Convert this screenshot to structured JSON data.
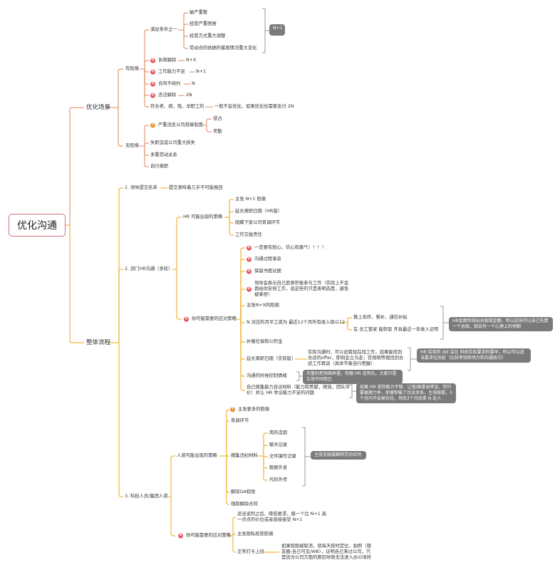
{
  "root": "优化沟通",
  "colors": {
    "scene_branch": "#e39a78",
    "process_branch": "#f2b53c",
    "note_badge": "#7b7b7b",
    "icon_red": "#e0505a",
    "icon_orange": "#f0953a",
    "root_border": "#d9707e"
  },
  "scene": {
    "label": "优化场景",
    "compensated": {
      "label": "有赔偿",
      "condition": {
        "label": "满足条件之一",
        "items": [
          "破产重整",
          "经营严重困难",
          "经营方式重大调整",
          "劳动合同依据的客观情况重大变化"
        ],
        "note": "N+1"
      },
      "items": [
        {
          "label": "协商解除",
          "value": "N+X",
          "icon": "red-flower-icon"
        },
        {
          "label": "工作能力不足",
          "value": "N+1",
          "icon": "red-flower-icon"
        },
        {
          "label": "合同不续约",
          "value": "N",
          "icon": "red-flower-icon"
        },
        {
          "label": "违法解除",
          "value": "2N",
          "icon": "red-flower-icon"
        }
      ],
      "special": {
        "label": "符合老、病、残、孕职工的",
        "value": "一般不会优化，如果优化也需要支付 2N"
      }
    },
    "uncompensated": {
      "label": "无赔偿",
      "violation": {
        "label": "严重违反公司规章制度",
        "icon": "orange-alert-icon",
        "items": [
          "侵占",
          "考勤"
        ]
      },
      "items": [
        "失职造成公司重大损失",
        "多重劳动关系",
        "自行离职"
      ]
    }
  },
  "process": {
    "label": "整体流程",
    "step1": {
      "label": "1. 领导提交名单",
      "value": "提交意味着几乎不可能挽回"
    },
    "step2": {
      "label": "2. 部门HR沟通（多轮）",
      "hr_strategy": {
        "label": "HR 可能出现的策略",
        "items": [
          "主张 N+1 赔偿",
          "延长离职日期（HR版）",
          "隐瞒下家公司背调环节",
          "工作交接责任"
        ]
      },
      "response": {
        "label": "你可能需要的应对策略",
        "items": [
          "一定要有耐心、信心和勇气！！！！",
          "沟通过程录音",
          "保留书面证据",
          "领导会表示自己愿意积极参与工作（实际上不会再给你安排工作，说这些的只是表明态度，避免被拿捏）",
          "主张N+X的赔偿",
          "N 对应的月平工资为 最近12个月所有收入除以12",
          "补缴社保和公积金",
          "延长离职日期（实际版）",
          "沟通的时候控制情绪",
          "自己搜集能力自证材料（能力和贡献，绩效，团队评价）并让 HR 举证能力不足的问题"
        ],
        "salary_items": [
          "算上年终、餐补、通信补贴",
          "在 员工管家 能获取 开具最近一年收入证明"
        ],
        "salary_note": "HR会面你测出总赔偿金额，所以这块可以自己先算一个总账，就会有一个心理上的预期",
        "extend_detail": "实际沟通时，可以说我现在找工作，如果能找到合适的offer，即刻会立马走；否则稍等我找到合适工作再说（具体节奏自行把握）",
        "extend_note": "HR 给到的 ddl 会比 科技实际要求的要早，所以可以适当要求往后延（比较考验职场力和沟通技巧）",
        "emotion_note": "尽量别把场面弄僵，你跟 HR 没有仇，大家只是立场不同而已",
        "evidence_note": "如果 HR 说你能力不够，让他/她拿出举证，你只要据理力争，即便你输了也没关系，主张赔偿，3个月内不会被优化，然后3个月后拿 N 走人"
      }
    },
    "step3": {
      "label": "3. 科技人员/集团人资",
      "hr_strategy": {
        "label": "人资可能出现的策略",
        "items": [
          "主张更多的赔偿",
          "背调环节",
          "搜集违纪材料",
          "解除OA权限",
          "强制解除合同"
        ],
        "evidence": [
          "简历造假",
          "聊天记录",
          "文件操作记录",
          "数据外发",
          "代码外传"
        ],
        "evidence_note": "主张无赔偿解除劳动合同"
      },
      "response": {
        "label": "你可能需要的应对策略",
        "items": [
          "适当谈判之后，降低要求，报一个比 N+1 高一点点的价位或者直接接受 N+1",
          "主张隐私权获赔偿",
          "正常打卡上班"
        ],
        "clockin_detail": "如果权限被取消，就每天按时定位，拍照（朋友圈-自己可见/WB），证明自己来过公司，只是因为公司方面的原因导致无法进入办公场所"
      }
    }
  }
}
